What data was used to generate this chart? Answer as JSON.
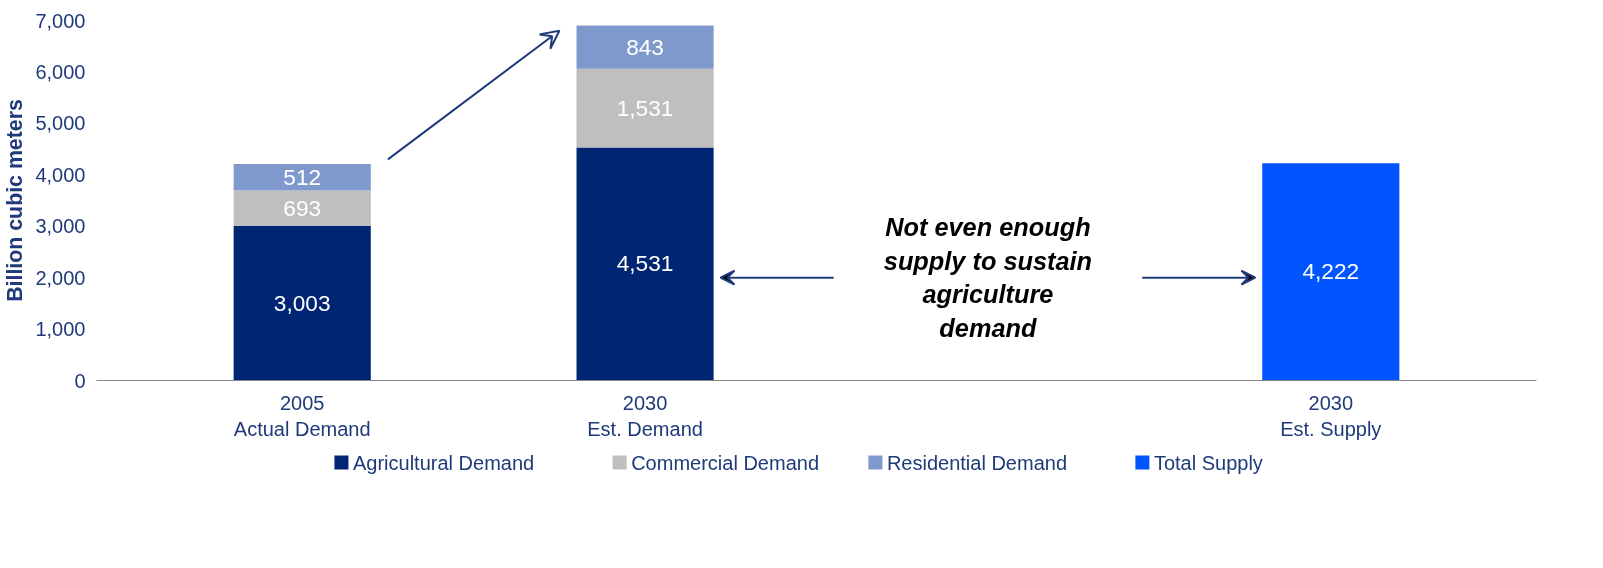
{
  "chart_data": {
    "type": "bar",
    "stacked": true,
    "ylabel": "Billion cubic meters",
    "categories": [
      "2005\nActual Demand",
      "2030\nEst. Demand",
      null,
      "2030\nEst. Supply"
    ],
    "series": [
      {
        "name": "Agricultural Demand",
        "color": "#002673",
        "values": [
          3003,
          4531,
          null,
          null
        ],
        "value_labels": [
          "3,003",
          "4,531",
          null,
          null
        ]
      },
      {
        "name": "Commercial Demand",
        "color": "#bfbfbf",
        "values": [
          693,
          1531,
          null,
          null
        ],
        "value_labels": [
          "693",
          "1,531",
          null,
          null
        ]
      },
      {
        "name": "Residential Demand",
        "color": "#7f99cc",
        "values": [
          512,
          843,
          null,
          null
        ],
        "value_labels": [
          "512",
          "843",
          null,
          null
        ]
      },
      {
        "name": "Total Supply",
        "color": "#0055ff",
        "values": [
          null,
          null,
          null,
          4222
        ],
        "value_labels": [
          null,
          null,
          null,
          "4,222"
        ]
      }
    ],
    "ylim": [
      0,
      7000
    ],
    "yticks": [
      {
        "value": 0,
        "label": "0"
      },
      {
        "value": 1000,
        "label": "1,000"
      },
      {
        "value": 2000,
        "label": "2,000"
      },
      {
        "value": 3000,
        "label": "3,000"
      },
      {
        "value": 4000,
        "label": "4,000"
      },
      {
        "value": 5000,
        "label": "5,000"
      },
      {
        "value": 6000,
        "label": "6,000"
      },
      {
        "value": 7000,
        "label": "7,000"
      }
    ],
    "grid": false,
    "legend": "bottom",
    "annotations": [
      "Not even enough supply to sustain agriculture demand"
    ]
  }
}
